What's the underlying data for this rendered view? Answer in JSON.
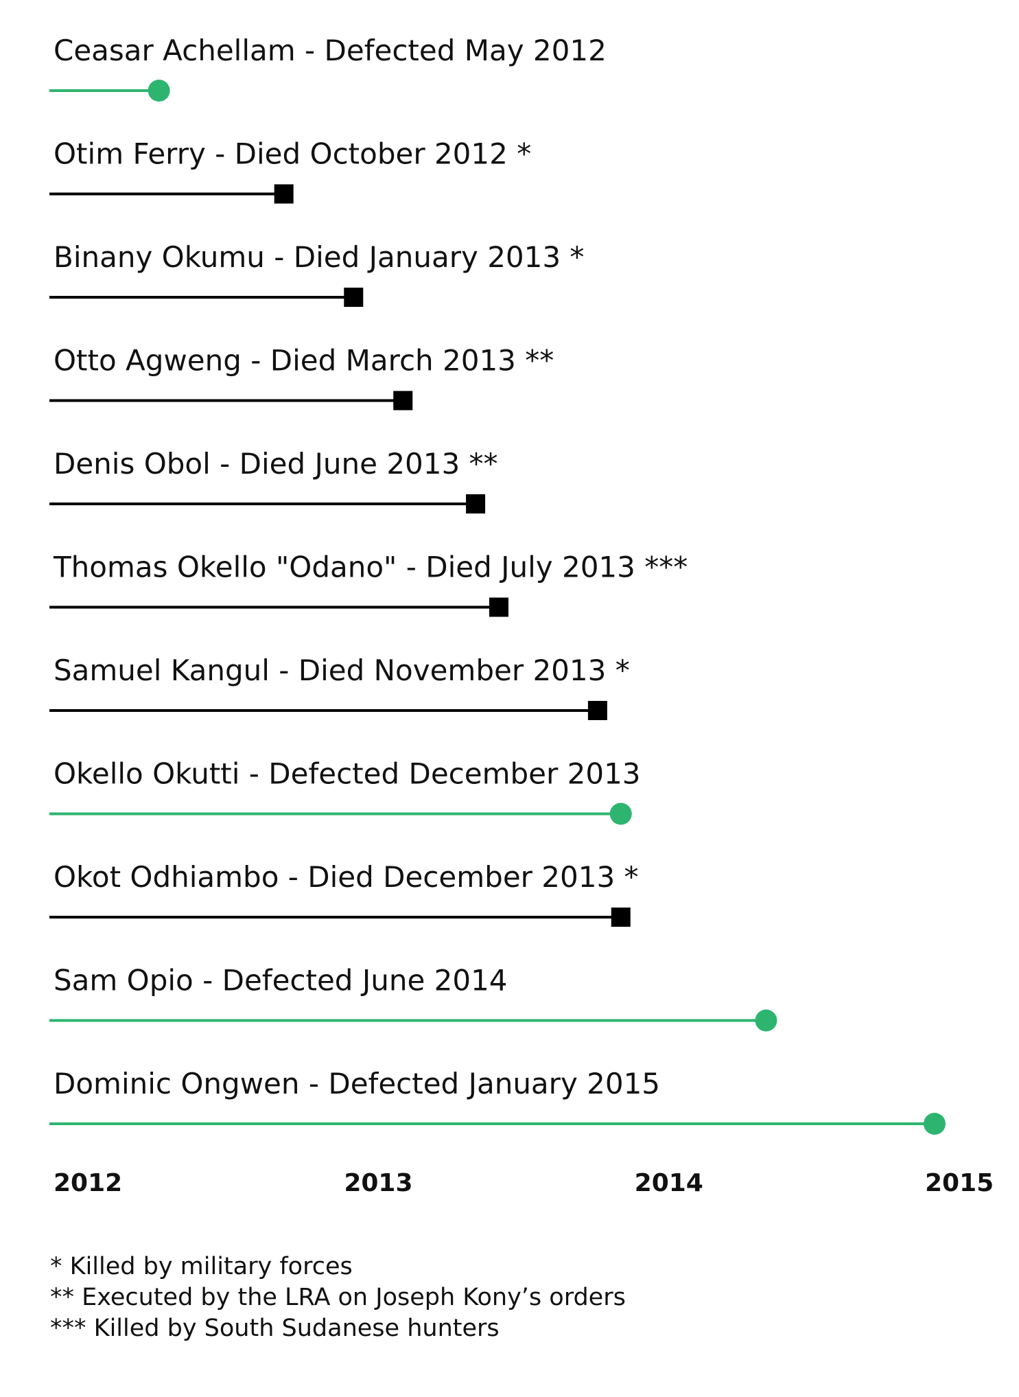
{
  "chart_data": {
    "type": "timeline",
    "title": "",
    "xlabel": "",
    "ylabel": "",
    "xlim": [
      2012,
      2015
    ],
    "ticks": [
      "2012",
      "2013",
      "2014",
      "2015"
    ],
    "colors": {
      "defected": "#2db56f",
      "died": "#000000"
    },
    "legend": [
      "defected: green line with circle",
      "died: black line with square"
    ],
    "rows": [
      {
        "label": "Ceasar Achellam - Defected May 2012",
        "status": "defected",
        "x": 2012.37
      },
      {
        "label": "Otim Ferry - Died October 2012 *",
        "status": "died",
        "x": 2012.8
      },
      {
        "label": "Binany Okumu - Died January 2013 *",
        "status": "died",
        "x": 2013.04
      },
      {
        "label": "Otto Agweng - Died March 2013 **",
        "status": "died",
        "x": 2013.21
      },
      {
        "label": "Denis Obol - Died June 2013 **",
        "status": "died",
        "x": 2013.46
      },
      {
        "label": "Thomas Okello \"Odano\" - Died July 2013 ***",
        "status": "died",
        "x": 2013.54
      },
      {
        "label": "Samuel Kangul - Died November 2013  *",
        "status": "died",
        "x": 2013.88
      },
      {
        "label": "Okello Okutti - Defected December 2013",
        "status": "defected",
        "x": 2013.96
      },
      {
        "label": "Okot Odhiambo - Died December 2013 *",
        "status": "died",
        "x": 2013.96
      },
      {
        "label": "Sam Opio - Defected June 2014",
        "status": "defected",
        "x": 2014.46
      },
      {
        "label": "Dominic Ongwen - Defected January 2015",
        "status": "defected",
        "x": 2015.04
      }
    ]
  },
  "footnotes": [
    "* Killed by military forces",
    "** Executed by the LRA on Joseph Kony’s orders",
    "*** Killed by South Sudanese hunters"
  ]
}
